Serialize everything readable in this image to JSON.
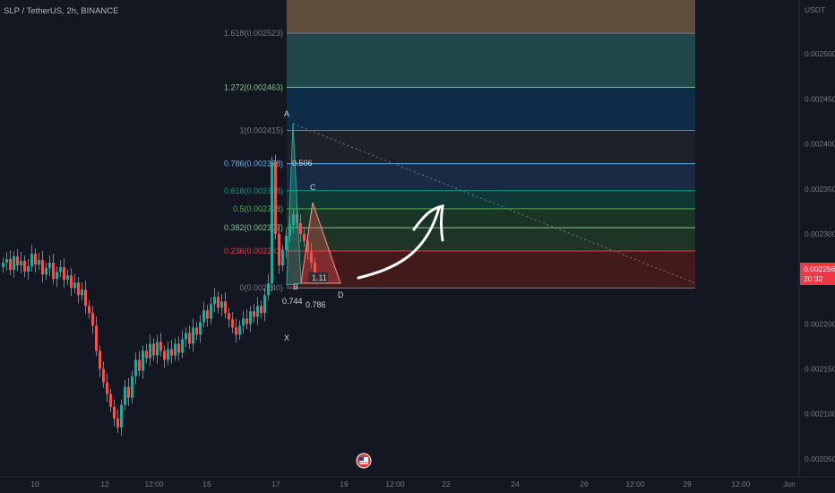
{
  "header": {
    "title": "SLP / TetherUS, 2h, BINANCE"
  },
  "price_scale": {
    "currency": "USDT"
  },
  "current_price": {
    "value": "0.002256",
    "countdown": "20:32",
    "color": "#f23645"
  },
  "colors": {
    "background": "#131722",
    "up_candle": "#26a69a",
    "down_candle": "#ef5350",
    "axis_text": "#787b86"
  },
  "chart_data": {
    "type": "candlestick",
    "title": "SLP / TetherUS, 2h, BINANCE",
    "y_axis": {
      "unit": "USDT",
      "range": [
        0.00203,
        0.00256
      ],
      "ticks": [
        0.0025,
        0.00245,
        0.0024,
        0.00235,
        0.0023,
        0.00225,
        0.0022,
        0.00215,
        0.0021,
        0.00205
      ],
      "tick_labels": [
        "0.002500",
        "0.002450",
        "0.002400",
        "0.002350",
        "0.002300",
        "0.002250",
        "0.002200",
        "0.002150",
        "0.002100",
        "0.002050"
      ]
    },
    "x_axis": {
      "tick_labels": [
        "10",
        "12",
        "12:00",
        "15",
        "17",
        "19",
        "12:00",
        "22",
        "24",
        "26",
        "12:00",
        "29",
        "12:00",
        "Jun"
      ]
    },
    "candles_closes": [
      0.002268,
      0.002272,
      0.00226,
      0.002275,
      0.002265,
      0.00227,
      0.002258,
      0.002264,
      0.002278,
      0.002266,
      0.002271,
      0.002255,
      0.002262,
      0.002268,
      0.00225,
      0.002258,
      0.002263,
      0.002249,
      0.002254,
      0.00224,
      0.002246,
      0.002232,
      0.002238,
      0.00222,
      0.002212,
      0.002198,
      0.00217,
      0.00215,
      0.002135,
      0.002122,
      0.002108,
      0.002095,
      0.002085,
      0.00211,
      0.00213,
      0.002118,
      0.002142,
      0.00216,
      0.002148,
      0.00217,
      0.002162,
      0.002178,
      0.002165,
      0.00218,
      0.00217,
      0.00216,
      0.002172,
      0.002165,
      0.002178,
      0.002168,
      0.002183,
      0.00219,
      0.002178,
      0.002196,
      0.002188,
      0.002202,
      0.002215,
      0.002206,
      0.002222,
      0.00223,
      0.002218,
      0.002225,
      0.002212,
      0.002205,
      0.002196,
      0.002188,
      0.002198,
      0.002206,
      0.0022,
      0.002214,
      0.002208,
      0.00222,
      0.002212,
      0.002232,
      0.002245,
      0.00238,
      0.0023,
      0.002265,
      0.002282,
      0.002298,
      0.00231,
      0.002322,
      0.002312,
      0.0023,
      0.002292,
      0.00228,
      0.002268,
      0.002256
    ],
    "fibonacci": [
      {
        "label": "1.618(0.002523)",
        "level": 1.618,
        "price": 0.002523,
        "color": "#787b86"
      },
      {
        "label": "1.272(0.002463)",
        "level": 1.272,
        "price": 0.002463,
        "color": "#81c784"
      },
      {
        "label": "1(0.002415)",
        "level": 1,
        "price": 0.002415,
        "color": "#787b86"
      },
      {
        "label": "0.786(0.002378)",
        "level": 0.786,
        "price": 0.002378,
        "color": "#64b5f6"
      },
      {
        "label": "0.618(0.002348)",
        "level": 0.618,
        "price": 0.002348,
        "color": "#089981"
      },
      {
        "label": "0.5(0.002328)",
        "level": 0.5,
        "price": 0.002328,
        "color": "#4caf50"
      },
      {
        "label": "0.382(0.002307)",
        "level": 0.382,
        "price": 0.002307,
        "color": "#81c784"
      },
      {
        "label": "0.236(0.002281)",
        "level": 0.236,
        "price": 0.002281,
        "color": "#f23645"
      },
      {
        "label": "0(0.002240)",
        "level": 0,
        "price": 0.00224,
        "color": "#787b86"
      }
    ],
    "fib_zones": [
      {
        "from": 0.002523,
        "to": 0.00256,
        "color": "#5d4d3a"
      },
      {
        "from": 0.002463,
        "to": 0.002523,
        "color": "#22474a"
      },
      {
        "from": 0.002415,
        "to": 0.002463,
        "color": "#0c2c48"
      },
      {
        "from": 0.002378,
        "to": 0.002415,
        "color": "#1e2127"
      },
      {
        "from": 0.002348,
        "to": 0.002378,
        "color": "#1a2a44"
      },
      {
        "from": 0.002328,
        "to": 0.002348,
        "color": "#103736"
      },
      {
        "from": 0.002307,
        "to": 0.002328,
        "color": "#1a3526"
      },
      {
        "from": 0.002281,
        "to": 0.002307,
        "color": "#1d3524"
      },
      {
        "from": 0.00224,
        "to": 0.002281,
        "color": "#421a1a"
      }
    ],
    "harmonic_points": [
      {
        "label": "X",
        "price": 0.002218
      },
      {
        "label": "A",
        "price": 0.002415
      },
      {
        "label": "B",
        "price": 0.00224
      },
      {
        "label": "C",
        "price": 0.002332
      },
      {
        "label": "D",
        "price": 0.00224
      }
    ],
    "ratios": [
      "0.506",
      "0.744",
      "0.786",
      "1.11"
    ]
  }
}
